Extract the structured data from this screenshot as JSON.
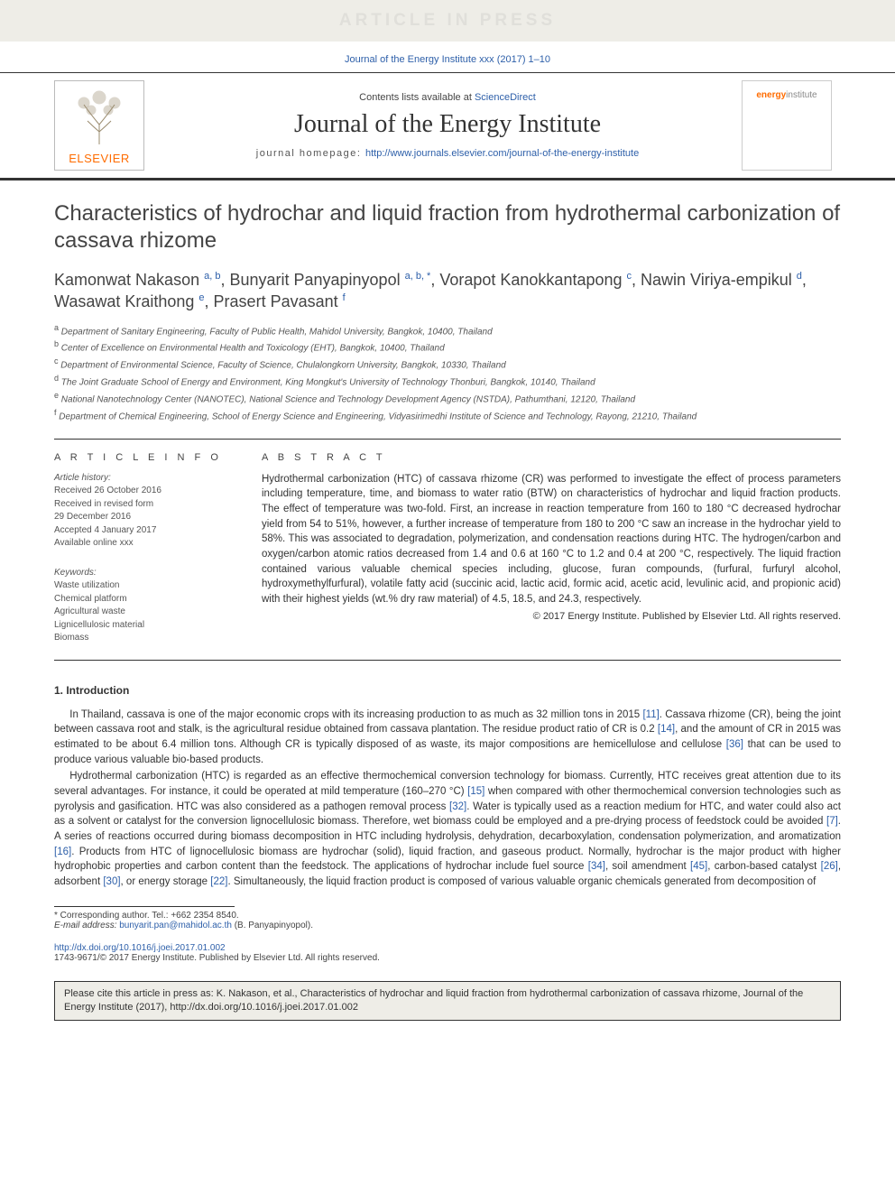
{
  "banner": {
    "text": "ARTICLE IN PRESS"
  },
  "journal_ref": "Journal of the Energy Institute xxx (2017) 1–10",
  "header": {
    "contents_prefix": "Contents lists available at ",
    "contents_link": "ScienceDirect",
    "journal_name": "Journal of the Energy Institute",
    "homepage_prefix": "journal homepage: ",
    "homepage_url": "http://www.journals.elsevier.com/journal-of-the-energy-institute",
    "publisher": "ELSEVIER",
    "cover_brand_bold": "energy",
    "cover_brand_light": "institute"
  },
  "title": "Characteristics of hydrochar and liquid fraction from hydrothermal carbonization of cassava rhizome",
  "authors_html": "Kamonwat Nakason <sup>a, b</sup>, Bunyarit Panyapinyopol <sup>a, b, *</sup>, Vorapot Kanokkantapong <sup>c</sup>, Nawin Viriya-empikul <sup>d</sup>, Wasawat Kraithong <sup>e</sup>, Prasert Pavasant <sup>f</sup>",
  "affiliations": [
    "a Department of Sanitary Engineering, Faculty of Public Health, Mahidol University, Bangkok, 10400, Thailand",
    "b Center of Excellence on Environmental Health and Toxicology (EHT), Bangkok, 10400, Thailand",
    "c Department of Environmental Science, Faculty of Science, Chulalongkorn University, Bangkok, 10330, Thailand",
    "d The Joint Graduate School of Energy and Environment, King Mongkut's University of Technology Thonburi, Bangkok, 10140, Thailand",
    "e National Nanotechnology Center (NANOTEC), National Science and Technology Development Agency (NSTDA), Pathumthani, 12120, Thailand",
    "f Department of Chemical Engineering, School of Energy Science and Engineering, Vidyasirimedhi Institute of Science and Technology, Rayong, 21210, Thailand"
  ],
  "article_info": {
    "heading": "A R T I C L E  I N F O",
    "history_label": "Article history:",
    "history": [
      "Received 26 October 2016",
      "Received in revised form",
      "29 December 2016",
      "Accepted 4 January 2017",
      "Available online xxx"
    ],
    "keywords_label": "Keywords:",
    "keywords": [
      "Waste utilization",
      "Chemical platform",
      "Agricultural waste",
      "Lignicellulosic material",
      "Biomass"
    ]
  },
  "abstract": {
    "heading": "A B S T R A C T",
    "text": "Hydrothermal carbonization (HTC) of cassava rhizome (CR) was performed to investigate the effect of process parameters including temperature, time, and biomass to water ratio (BTW) on characteristics of hydrochar and liquid fraction products. The effect of temperature was two-fold. First, an increase in reaction temperature from 160 to 180 °C decreased hydrochar yield from 54 to 51%, however, a further increase of temperature from 180 to 200 °C saw an increase in the hydrochar yield to 58%. This was associated to degradation, polymerization, and condensation reactions during HTC. The hydrogen/carbon and oxygen/carbon atomic ratios decreased from 1.4 and 0.6 at 160 °C to 1.2 and 0.4 at 200 °C, respectively. The liquid fraction contained various valuable chemical species including, glucose, furan compounds, (furfural, furfuryl alcohol, hydroxymethylfurfural), volatile fatty acid (succinic acid, lactic acid, formic acid, acetic acid, levulinic acid, and propionic acid) with their highest yields (wt.% dry raw material) of 4.5, 18.5, and 24.3, respectively.",
    "copyright": "© 2017 Energy Institute. Published by Elsevier Ltd. All rights reserved."
  },
  "section1": {
    "heading": "1. Introduction",
    "paragraphs": [
      "In Thailand, cassava is one of the major economic crops with its increasing production to as much as 32 million tons in 2015 [11]. Cassava rhizome (CR), being the joint between cassava root and stalk, is the agricultural residue obtained from cassava plantation. The residue product ratio of CR is 0.2 [14], and the amount of CR in 2015 was estimated to be about 6.4 million tons. Although CR is typically disposed of as waste, its major compositions are hemicellulose and cellulose [36] that can be used to produce various valuable bio-based products.",
      "Hydrothermal carbonization (HTC) is regarded as an effective thermochemical conversion technology for biomass. Currently, HTC receives great attention due to its several advantages. For instance, it could be operated at mild temperature (160–270 °C) [15] when compared with other thermochemical conversion technologies such as pyrolysis and gasification. HTC was also considered as a pathogen removal process [32]. Water is typically used as a reaction medium for HTC, and water could also act as a solvent or catalyst for the conversion lignocellulosic biomass. Therefore, wet biomass could be employed and a pre-drying process of feedstock could be avoided [7]. A series of reactions occurred during biomass decomposition in HTC including hydrolysis, dehydration, decarboxylation, condensation polymerization, and aromatization [16]. Products from HTC of lignocellulosic biomass are hydrochar (solid), liquid fraction, and gaseous product. Normally, hydrochar is the major product with higher hydrophobic properties and carbon content than the feedstock. The applications of hydrochar include fuel source [34], soil amendment [45], carbon-based catalyst [26], adsorbent [30], or energy storage [22]. Simultaneously, the liquid fraction product is composed of various valuable organic chemicals generated from decomposition of"
    ]
  },
  "footnotes": {
    "corresponding": "* Corresponding author. Tel.: +662 2354 8540.",
    "email_label": "E-mail address: ",
    "email": "bunyarit.pan@mahidol.ac.th",
    "email_author": " (B. Panyapinyopol)."
  },
  "doi": "http://dx.doi.org/10.1016/j.joei.2017.01.002",
  "issn_line": "1743-9671/© 2017 Energy Institute. Published by Elsevier Ltd. All rights reserved.",
  "cite_box": "Please cite this article in press as: K. Nakason, et al., Characteristics of hydrochar and liquid fraction from hydrothermal carbonization of cassava rhizome, Journal of the Energy Institute (2017), http://dx.doi.org/10.1016/j.joei.2017.01.002",
  "refs": [
    "[11]",
    "[14]",
    "[36]",
    "[15]",
    "[32]",
    "[7]",
    "[16]",
    "[34]",
    "[45]",
    "[26]",
    "[30]",
    "[22]"
  ],
  "colors": {
    "link": "#2d5fa9",
    "accent": "#ff6c00",
    "band_bg": "#eeede7"
  }
}
